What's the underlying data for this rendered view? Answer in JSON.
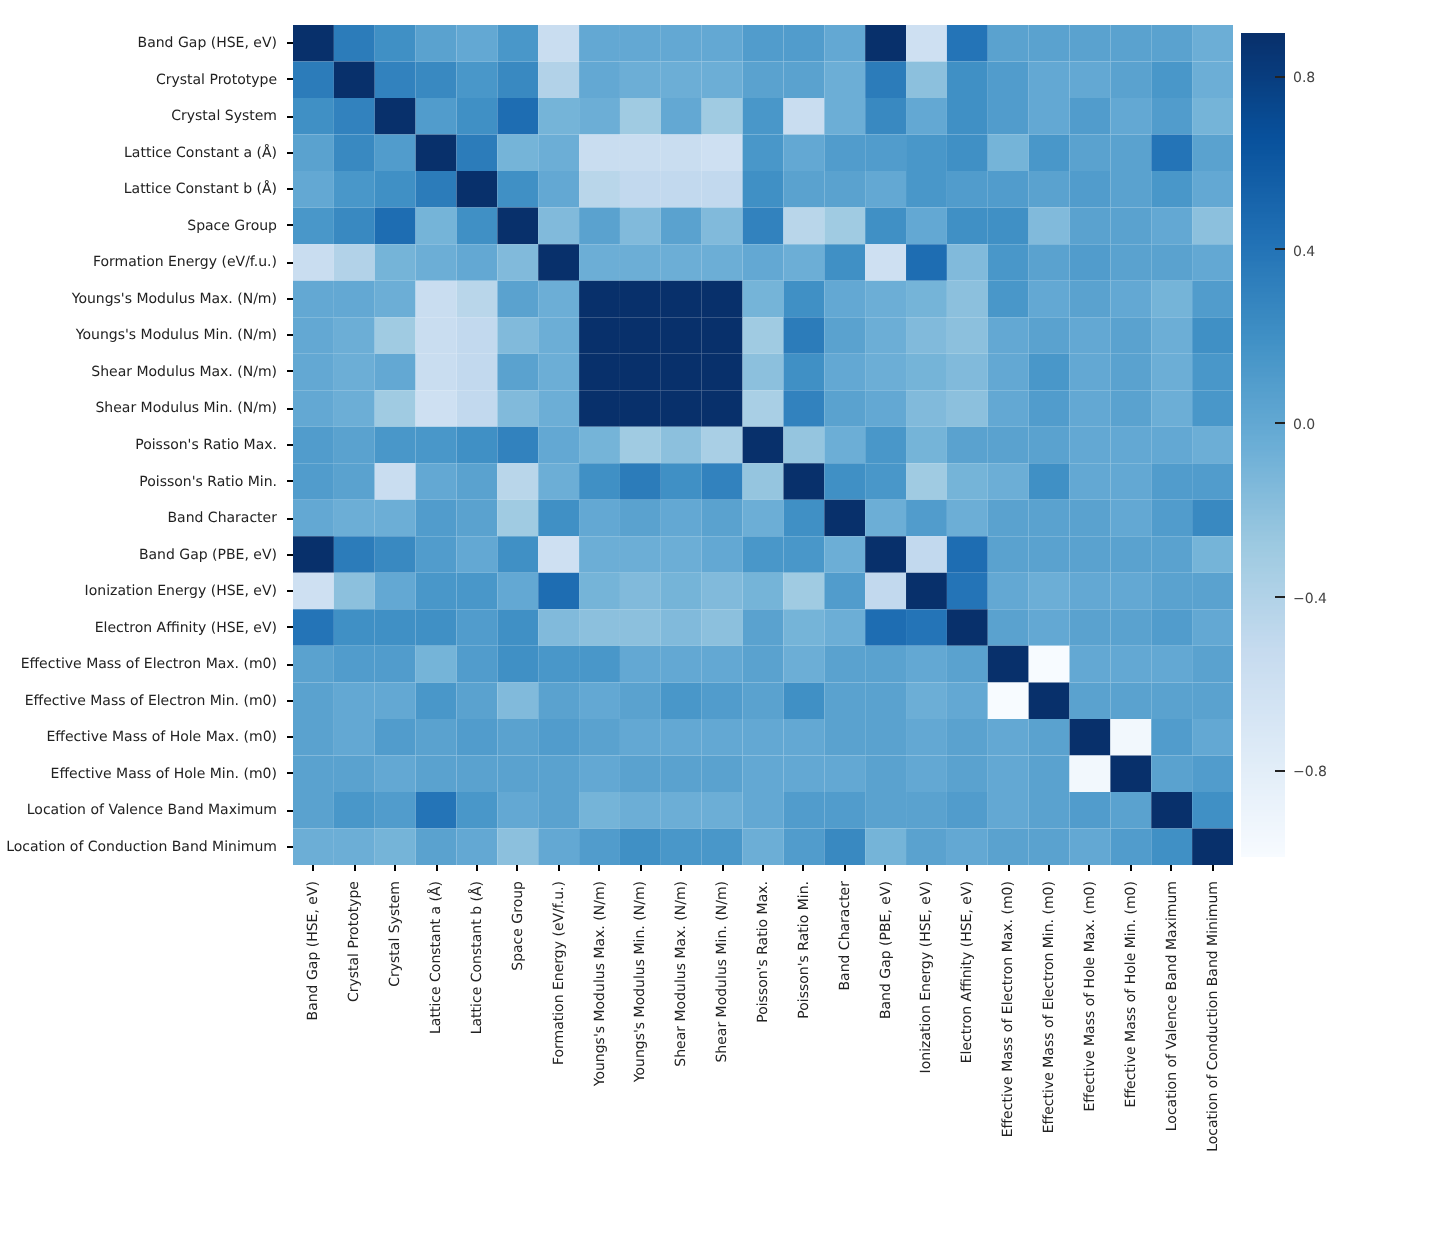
{
  "chart_data": {
    "type": "heatmap",
    "categories": [
      "Band Gap (HSE, eV)",
      "Crystal Prototype",
      "Crystal System",
      "Lattice Constant a (Å)",
      "Lattice Constant b (Å)",
      "Space Group",
      "Formation Energy (eV/f.u.)",
      "Youngs's Modulus Max. (N/m)",
      "Youngs's Modulus Min. (N/m)",
      "Shear Modulus Max. (N/m)",
      "Shear Modulus Min. (N/m)",
      "Poisson's Ratio Max.",
      "Poisson's Ratio Min.",
      "Band Character",
      "Band Gap (PBE, eV)",
      "Ionization Energy (HSE, eV)",
      "Electron Affinity (HSE, eV)",
      "Effective Mass of Electron Max. (m0)",
      "Effective Mass of Electron Min. (m0)",
      "Effective Mass of Hole Max. (m0)",
      "Effective Mass of Hole Min. (m0)",
      "Location of Valence Band Maximum",
      "Location of Conduction Band Minimum"
    ],
    "y_categories": [
      "Band Gap (HSE, eV)",
      "Crystal Prototype",
      "Crystal System",
      "Lattice Constant a (Å)",
      "Lattice Constant b (Å)",
      "Space Group",
      "Formation Energy (eV/f.u.)",
      "Youngs's Modulus Max. (N/m)",
      "Youngs's Modulus Min. (N/m)",
      "Shear Modulus Max. (N/m)",
      "Shear Modulus Min. (N/m)",
      "Poisson's Ratio Max.",
      "Poisson's Ratio Min.",
      "Band Character",
      "Band Gap (PBE, eV)",
      "Ionization Energy (HSE, eV)",
      "Electron Affinity (HSE, eV)",
      "Effective Mass of Electron Max. (m0)",
      "Effective Mass of Electron Min. (m0)",
      "Effective Mass of Hole Max. (m0)",
      "Effective Mass of Hole Min. (m0)",
      "Location of Valence Band Maximum",
      "Location of Conduction Band Minimum"
    ],
    "cells": [
      [
        0.9,
        0.35,
        0.2,
        0.05,
        0.0,
        0.15,
        -0.55,
        0.0,
        0.0,
        0.0,
        0.0,
        0.1,
        0.1,
        0.0,
        0.9,
        -0.6,
        0.4,
        0.05,
        0.05,
        0.05,
        0.05,
        0.05,
        -0.05
      ],
      [
        0.35,
        0.9,
        0.3,
        0.25,
        0.15,
        0.25,
        -0.4,
        0.0,
        -0.05,
        -0.05,
        -0.05,
        0.05,
        0.05,
        -0.05,
        0.35,
        -0.2,
        0.2,
        0.1,
        0.0,
        0.0,
        0.05,
        0.15,
        -0.05
      ],
      [
        0.2,
        0.3,
        0.9,
        0.1,
        0.2,
        0.45,
        -0.1,
        -0.05,
        -0.3,
        0.0,
        -0.3,
        0.15,
        -0.55,
        -0.05,
        0.25,
        0.0,
        0.2,
        0.1,
        0.0,
        0.1,
        0.0,
        0.1,
        -0.1
      ],
      [
        0.05,
        0.25,
        0.1,
        0.9,
        0.35,
        -0.1,
        -0.05,
        -0.55,
        -0.55,
        -0.55,
        -0.6,
        0.15,
        0.0,
        0.1,
        0.1,
        0.15,
        0.2,
        -0.1,
        0.15,
        0.05,
        0.05,
        0.4,
        0.05
      ],
      [
        0.0,
        0.15,
        0.2,
        0.35,
        0.9,
        0.2,
        0.0,
        -0.45,
        -0.5,
        -0.5,
        -0.5,
        0.2,
        0.05,
        0.05,
        0.0,
        0.15,
        0.1,
        0.1,
        0.05,
        0.1,
        0.05,
        0.15,
        0.0
      ],
      [
        0.15,
        0.25,
        0.45,
        -0.1,
        0.2,
        0.9,
        -0.15,
        0.05,
        -0.15,
        0.05,
        -0.15,
        0.3,
        -0.45,
        -0.3,
        0.2,
        0.0,
        0.2,
        0.2,
        -0.15,
        0.05,
        0.05,
        0.0,
        -0.2
      ],
      [
        -0.55,
        -0.4,
        -0.1,
        -0.05,
        0.0,
        -0.15,
        0.9,
        -0.05,
        -0.05,
        -0.05,
        -0.05,
        0.0,
        -0.05,
        0.2,
        -0.6,
        0.45,
        -0.15,
        0.15,
        0.05,
        0.1,
        0.05,
        0.05,
        0.0
      ],
      [
        0.0,
        0.0,
        -0.05,
        -0.55,
        -0.45,
        0.05,
        -0.05,
        0.9,
        0.9,
        0.9,
        0.9,
        -0.1,
        0.2,
        0.0,
        -0.05,
        -0.1,
        -0.2,
        0.15,
        0.0,
        0.05,
        0.0,
        -0.1,
        0.1
      ],
      [
        0.0,
        -0.05,
        -0.3,
        -0.55,
        -0.5,
        -0.15,
        -0.05,
        0.9,
        0.9,
        0.9,
        0.9,
        -0.3,
        0.35,
        0.05,
        -0.05,
        -0.15,
        -0.2,
        0.0,
        0.05,
        0.0,
        0.05,
        -0.05,
        0.2
      ],
      [
        0.0,
        -0.05,
        0.0,
        -0.55,
        -0.5,
        0.05,
        -0.05,
        0.9,
        0.9,
        0.9,
        0.9,
        -0.2,
        0.2,
        0.0,
        -0.05,
        -0.1,
        -0.15,
        0.0,
        0.15,
        0.0,
        0.05,
        -0.05,
        0.15
      ],
      [
        0.0,
        -0.05,
        -0.3,
        -0.6,
        -0.5,
        -0.15,
        -0.05,
        0.9,
        0.9,
        0.9,
        0.9,
        -0.35,
        0.3,
        0.05,
        0.0,
        -0.15,
        -0.2,
        0.0,
        0.1,
        0.0,
        0.05,
        -0.05,
        0.15
      ],
      [
        0.1,
        0.05,
        0.15,
        0.15,
        0.2,
        0.3,
        0.0,
        -0.1,
        -0.3,
        -0.2,
        -0.35,
        0.9,
        -0.25,
        -0.05,
        0.15,
        -0.1,
        0.05,
        0.05,
        0.05,
        0.0,
        0.0,
        0.0,
        -0.05
      ],
      [
        0.1,
        0.05,
        -0.55,
        0.0,
        0.05,
        -0.45,
        -0.05,
        0.2,
        0.35,
        0.2,
        0.3,
        -0.25,
        0.9,
        0.2,
        0.15,
        -0.3,
        -0.1,
        -0.05,
        0.2,
        0.0,
        0.0,
        0.1,
        0.1
      ],
      [
        0.0,
        -0.05,
        -0.05,
        0.1,
        0.05,
        -0.3,
        0.2,
        0.0,
        0.05,
        0.0,
        0.05,
        -0.05,
        0.2,
        0.9,
        -0.05,
        0.1,
        -0.05,
        0.05,
        0.05,
        0.05,
        0.0,
        0.1,
        0.25
      ],
      [
        0.9,
        0.35,
        0.25,
        0.1,
        0.0,
        0.2,
        -0.6,
        -0.05,
        -0.05,
        -0.05,
        0.0,
        0.15,
        0.15,
        -0.05,
        0.9,
        -0.5,
        0.45,
        0.05,
        0.05,
        0.05,
        0.05,
        0.05,
        -0.1
      ],
      [
        -0.6,
        -0.2,
        0.0,
        0.15,
        0.15,
        0.0,
        0.45,
        -0.1,
        -0.15,
        -0.1,
        -0.15,
        -0.1,
        -0.3,
        0.1,
        -0.5,
        0.9,
        0.4,
        0.0,
        -0.05,
        0.0,
        0.0,
        0.05,
        0.05
      ],
      [
        0.4,
        0.2,
        0.2,
        0.2,
        0.1,
        0.2,
        -0.15,
        -0.2,
        -0.2,
        -0.15,
        -0.2,
        0.05,
        -0.1,
        -0.05,
        0.45,
        0.4,
        0.9,
        0.05,
        0.0,
        0.05,
        0.05,
        0.1,
        0.0
      ],
      [
        0.05,
        0.1,
        0.1,
        -0.1,
        0.1,
        0.2,
        0.15,
        0.15,
        0.0,
        0.0,
        0.0,
        0.05,
        -0.05,
        0.05,
        0.05,
        0.0,
        0.05,
        0.9,
        -1.0,
        0.0,
        0.0,
        0.0,
        0.05
      ],
      [
        0.05,
        0.0,
        0.0,
        0.15,
        0.05,
        -0.15,
        0.05,
        0.0,
        0.05,
        0.15,
        0.1,
        0.05,
        0.2,
        0.05,
        0.05,
        -0.05,
        0.0,
        -1.0,
        0.9,
        0.05,
        0.05,
        0.05,
        0.05
      ],
      [
        0.05,
        0.0,
        0.1,
        0.05,
        0.1,
        0.05,
        0.1,
        0.05,
        0.0,
        0.0,
        0.0,
        0.0,
        0.0,
        0.05,
        0.05,
        0.0,
        0.05,
        0.0,
        0.05,
        0.9,
        -0.95,
        0.1,
        0.0
      ],
      [
        0.05,
        0.05,
        0.0,
        0.05,
        0.05,
        0.05,
        0.05,
        0.0,
        0.05,
        0.05,
        0.05,
        0.0,
        0.0,
        0.0,
        0.05,
        0.0,
        0.05,
        0.0,
        0.05,
        -0.95,
        0.9,
        0.05,
        0.1
      ],
      [
        0.05,
        0.15,
        0.1,
        0.4,
        0.15,
        0.0,
        0.05,
        -0.1,
        -0.05,
        -0.05,
        -0.05,
        0.0,
        0.1,
        0.1,
        0.05,
        0.05,
        0.1,
        0.0,
        0.05,
        0.1,
        0.05,
        0.9,
        0.2
      ],
      [
        -0.05,
        -0.05,
        -0.1,
        0.05,
        0.0,
        -0.2,
        0.0,
        0.1,
        0.2,
        0.15,
        0.15,
        -0.05,
        0.1,
        0.25,
        -0.1,
        0.05,
        0.0,
        0.05,
        0.05,
        0.0,
        0.1,
        0.2,
        0.9
      ]
    ],
    "clim": [
      -1.0,
      0.9
    ],
    "cticks": [
      {
        "value": -0.8,
        "label": "−0.8"
      },
      {
        "value": -0.4,
        "label": "−0.4"
      },
      {
        "value": 0.0,
        "label": "0.0"
      },
      0.4,
      0.8
    ]
  }
}
